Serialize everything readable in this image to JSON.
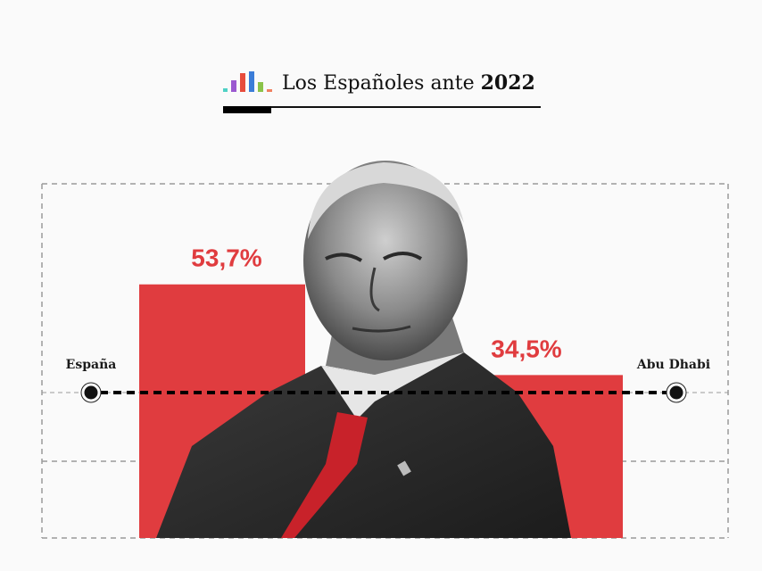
{
  "header": {
    "title_prefix": "Los Españoles ante ",
    "title_bold": "2022",
    "logo_icon": "bar-chart-logo-icon",
    "logo_colors": [
      "#4fd1c5",
      "#9b59d0",
      "#e74c3c",
      "#3b7dd8",
      "#8bc34a",
      "#f08060"
    ]
  },
  "chart_data": {
    "type": "bar",
    "title": "Los Españoles ante 2022",
    "categories": [
      "España",
      "Abu Dhabi"
    ],
    "values": [
      53.7,
      34.5
    ],
    "value_labels": [
      "53,7%",
      "34,5%"
    ],
    "unit": "%",
    "ylim": [
      0,
      75
    ],
    "grid": true,
    "bar_color": "#e03c3f",
    "xlabel": "",
    "ylabel": ""
  },
  "photo": {
    "description": "grayscale portrait cutout of an elderly man in suit and red tie"
  }
}
